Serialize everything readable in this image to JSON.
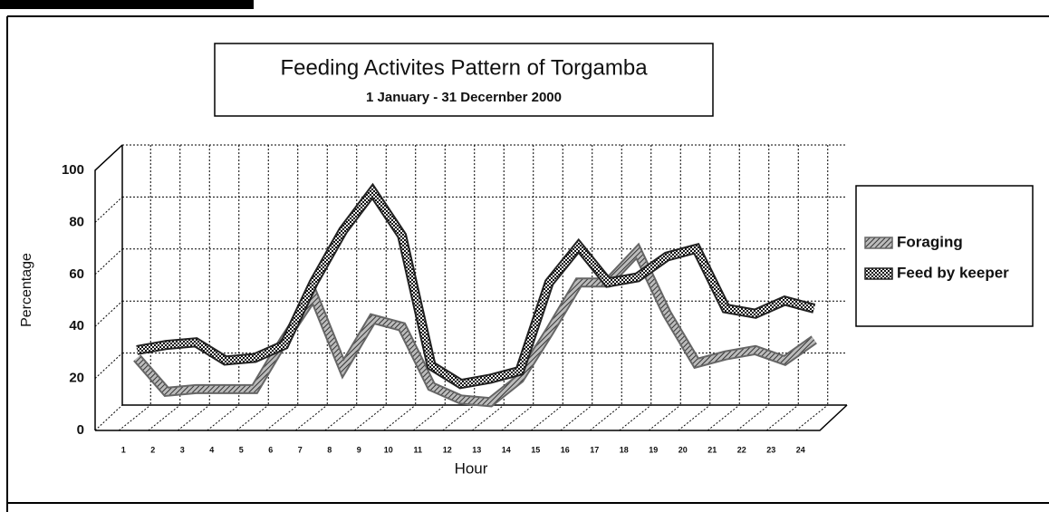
{
  "chart_data": {
    "type": "line",
    "title": "Feeding Activites Pattern of Torgamba",
    "subtitle": "1 January - 31 Decernber 2000",
    "x_label": "Hour",
    "y_label": "Percentage",
    "categories": [
      "1",
      "2",
      "3",
      "4",
      "5",
      "6",
      "7",
      "8",
      "9",
      "10",
      "11",
      "12",
      "13",
      "14",
      "15",
      "16",
      "17",
      "18",
      "19",
      "20",
      "21",
      "22",
      "23",
      "24"
    ],
    "series": [
      {
        "name": "Foraging",
        "color": "#666666",
        "values": [
          23,
          10,
          11,
          11,
          11,
          30,
          47,
          19,
          38,
          35,
          12,
          7,
          6,
          15,
          33,
          52,
          52,
          64,
          40,
          21,
          24,
          26,
          22,
          30
        ]
      },
      {
        "name": "Feed by keeper",
        "color": "#222222",
        "values": [
          26,
          28,
          29,
          22,
          23,
          28,
          52,
          72,
          87,
          70,
          20,
          13,
          15,
          18,
          52,
          66,
          52,
          54,
          62,
          65,
          42,
          40,
          45,
          42
        ]
      }
    ],
    "ylim": [
      0,
      100
    ],
    "yticks": [
      0,
      20,
      40,
      60,
      80,
      100
    ],
    "grid": true,
    "legend": "right"
  }
}
